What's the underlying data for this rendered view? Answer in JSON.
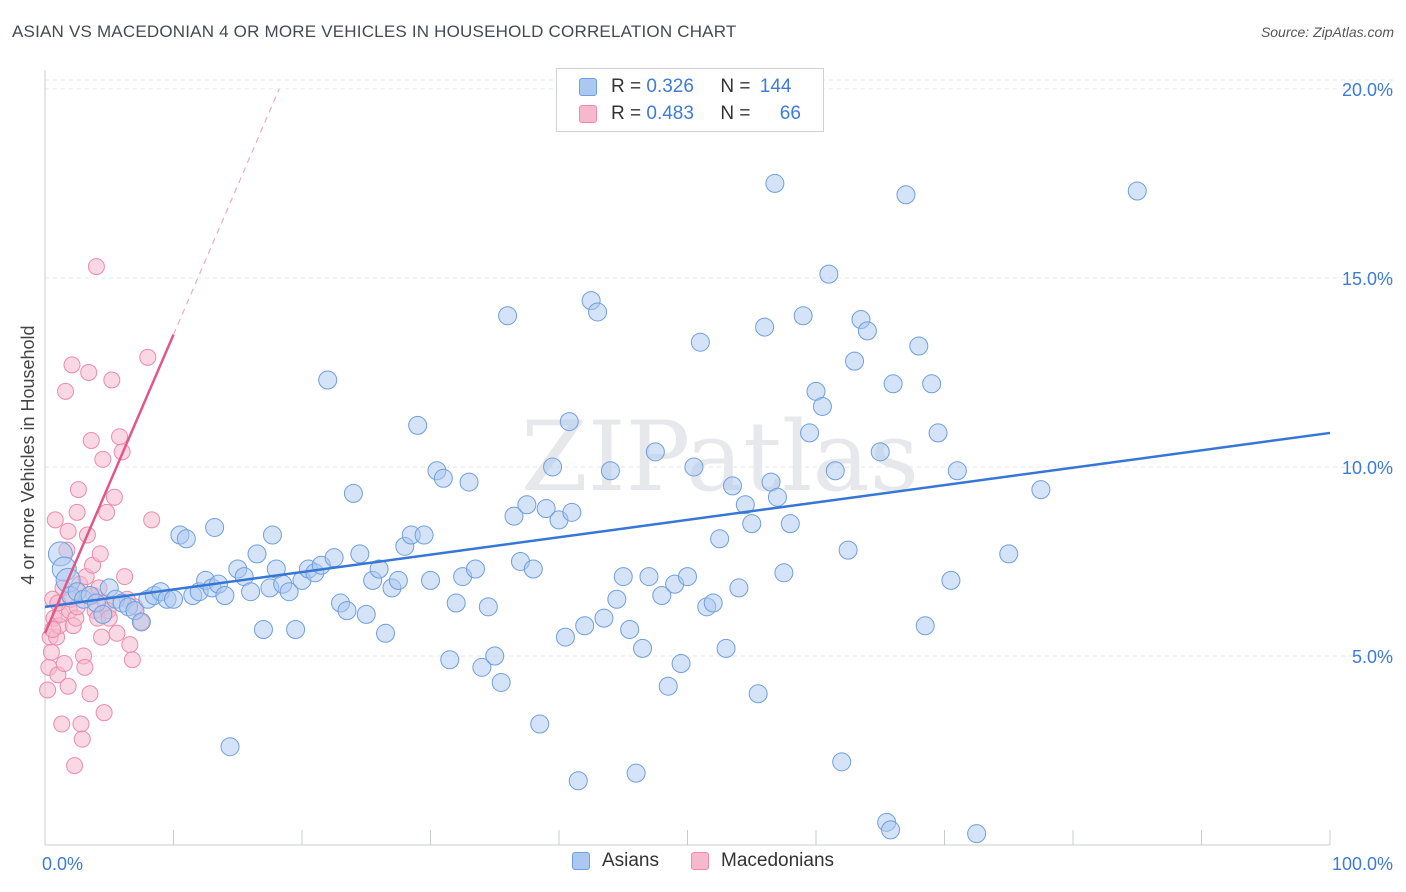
{
  "title": "ASIAN VS MACEDONIAN 4 OR MORE VEHICLES IN HOUSEHOLD CORRELATION CHART",
  "source": "Source: ZipAtlas.com",
  "watermark": "ZIPatlas",
  "colors": {
    "asian_fill": "#aac8f0",
    "asian_stroke": "#6f9fe0",
    "asian_line": "#3576d6",
    "mac_fill": "#f6b8cc",
    "mac_stroke": "#ee8aaa",
    "mac_line": "#e2578a",
    "axis_text": "#3d7bd9"
  },
  "legend": {
    "rows": [
      {
        "r_label": "R =",
        "r_value": "0.326",
        "n_label": "N =",
        "n_value": "144"
      },
      {
        "r_label": "R =",
        "r_value": "0.483",
        "n_label": "N =",
        "n_value": "66"
      }
    ]
  },
  "bottom_legend": [
    "Asians",
    "Macedonians"
  ],
  "chart_data": {
    "type": "scatter",
    "title": "ASIAN VS MACEDONIAN 4 OR MORE VEHICLES IN HOUSEHOLD CORRELATION CHART",
    "xlabel": "",
    "ylabel": "4 or more Vehicles in Household",
    "xlim": [
      0,
      100
    ],
    "ylim": [
      0,
      20.5
    ],
    "x_tick_labels": [
      "0.0%",
      "100.0%"
    ],
    "y_ticks": [
      5,
      10,
      15,
      20
    ],
    "y_tick_labels": [
      "5.0%",
      "10.0%",
      "15.0%",
      "20.0%"
    ],
    "grid": true,
    "series": [
      {
        "name": "Asians",
        "r": 0.326,
        "n": 144,
        "trend": {
          "x": [
            0,
            100
          ],
          "y": [
            6.3,
            10.9
          ]
        },
        "points": [
          [
            1.2,
            7.7
          ],
          [
            1.5,
            7.3
          ],
          [
            1.8,
            7.0
          ],
          [
            2.0,
            6.6
          ],
          [
            2.5,
            6.7
          ],
          [
            3.0,
            6.5
          ],
          [
            3.5,
            6.6
          ],
          [
            4.0,
            6.4
          ],
          [
            4.5,
            6.1
          ],
          [
            5.0,
            6.8
          ],
          [
            5.5,
            6.5
          ],
          [
            6.0,
            6.4
          ],
          [
            6.5,
            6.3
          ],
          [
            7.0,
            6.2
          ],
          [
            7.5,
            5.9
          ],
          [
            8.0,
            6.5
          ],
          [
            8.5,
            6.6
          ],
          [
            9.0,
            6.7
          ],
          [
            9.5,
            6.5
          ],
          [
            10.0,
            6.5
          ],
          [
            10.5,
            8.2
          ],
          [
            11.0,
            8.1
          ],
          [
            11.5,
            6.6
          ],
          [
            12.0,
            6.7
          ],
          [
            12.5,
            7.0
          ],
          [
            13.0,
            6.8
          ],
          [
            13.2,
            8.4
          ],
          [
            13.5,
            6.9
          ],
          [
            14.0,
            6.6
          ],
          [
            14.4,
            2.6
          ],
          [
            15.0,
            7.3
          ],
          [
            15.5,
            7.1
          ],
          [
            16.0,
            6.7
          ],
          [
            16.5,
            7.7
          ],
          [
            17.0,
            5.7
          ],
          [
            17.5,
            6.8
          ],
          [
            17.7,
            8.2
          ],
          [
            18.0,
            7.3
          ],
          [
            18.5,
            6.9
          ],
          [
            19.0,
            6.7
          ],
          [
            19.5,
            5.7
          ],
          [
            20.0,
            7.0
          ],
          [
            20.5,
            7.3
          ],
          [
            21.0,
            7.2
          ],
          [
            21.5,
            7.4
          ],
          [
            22.0,
            12.3
          ],
          [
            22.5,
            7.6
          ],
          [
            23.0,
            6.4
          ],
          [
            23.5,
            6.2
          ],
          [
            24.0,
            9.3
          ],
          [
            24.5,
            7.7
          ],
          [
            25.0,
            6.1
          ],
          [
            25.5,
            7.0
          ],
          [
            26.0,
            7.3
          ],
          [
            26.5,
            5.6
          ],
          [
            27.0,
            6.8
          ],
          [
            27.5,
            7.0
          ],
          [
            28.0,
            7.9
          ],
          [
            28.5,
            8.2
          ],
          [
            29.0,
            11.1
          ],
          [
            29.5,
            8.2
          ],
          [
            30.0,
            7.0
          ],
          [
            30.5,
            9.9
          ],
          [
            31.0,
            9.7
          ],
          [
            31.5,
            4.9
          ],
          [
            32.0,
            6.4
          ],
          [
            32.5,
            7.1
          ],
          [
            33.0,
            9.6
          ],
          [
            33.5,
            7.3
          ],
          [
            34.0,
            4.7
          ],
          [
            34.5,
            6.3
          ],
          [
            35.0,
            5.0
          ],
          [
            35.5,
            4.3
          ],
          [
            36.0,
            14.0
          ],
          [
            36.5,
            8.7
          ],
          [
            37.0,
            7.5
          ],
          [
            37.5,
            9.0
          ],
          [
            38.0,
            7.3
          ],
          [
            38.5,
            3.2
          ],
          [
            39.0,
            8.9
          ],
          [
            39.5,
            10.0
          ],
          [
            40.0,
            8.6
          ],
          [
            40.5,
            5.5
          ],
          [
            40.8,
            11.2
          ],
          [
            41.0,
            8.8
          ],
          [
            41.5,
            1.7
          ],
          [
            42.0,
            5.8
          ],
          [
            42.5,
            14.4
          ],
          [
            43.0,
            14.1
          ],
          [
            43.5,
            6.0
          ],
          [
            44.0,
            9.9
          ],
          [
            44.5,
            6.5
          ],
          [
            45.0,
            7.1
          ],
          [
            45.5,
            5.7
          ],
          [
            46.0,
            1.9
          ],
          [
            46.5,
            5.2
          ],
          [
            47.0,
            7.1
          ],
          [
            47.5,
            10.4
          ],
          [
            48.0,
            6.6
          ],
          [
            48.5,
            4.2
          ],
          [
            49.0,
            6.9
          ],
          [
            49.5,
            4.8
          ],
          [
            50.0,
            7.1
          ],
          [
            50.5,
            10.0
          ],
          [
            51.0,
            13.3
          ],
          [
            51.5,
            6.3
          ],
          [
            52.0,
            6.4
          ],
          [
            52.5,
            8.1
          ],
          [
            53.0,
            5.2
          ],
          [
            53.5,
            9.5
          ],
          [
            54.0,
            6.8
          ],
          [
            54.5,
            9.0
          ],
          [
            55.0,
            8.5
          ],
          [
            55.5,
            4.0
          ],
          [
            56.0,
            13.7
          ],
          [
            56.5,
            9.6
          ],
          [
            56.8,
            17.5
          ],
          [
            57.0,
            9.2
          ],
          [
            57.5,
            7.2
          ],
          [
            58.0,
            8.5
          ],
          [
            59.0,
            14.0
          ],
          [
            59.5,
            10.9
          ],
          [
            60.0,
            12.0
          ],
          [
            60.5,
            11.6
          ],
          [
            61.0,
            15.1
          ],
          [
            61.5,
            9.9
          ],
          [
            62.0,
            2.2
          ],
          [
            62.5,
            7.8
          ],
          [
            63.0,
            12.8
          ],
          [
            63.5,
            13.9
          ],
          [
            64.0,
            13.6
          ],
          [
            65.0,
            10.4
          ],
          [
            65.5,
            0.6
          ],
          [
            65.8,
            0.4
          ],
          [
            66.0,
            12.2
          ],
          [
            67.0,
            17.2
          ],
          [
            68.0,
            13.2
          ],
          [
            68.5,
            5.8
          ],
          [
            69.0,
            12.2
          ],
          [
            69.5,
            10.9
          ],
          [
            70.5,
            7.0
          ],
          [
            71.0,
            9.9
          ],
          [
            72.5,
            0.3
          ],
          [
            75.0,
            7.7
          ],
          [
            77.5,
            9.4
          ],
          [
            85.0,
            17.3
          ]
        ]
      },
      {
        "name": "Macedonians",
        "r": 0.483,
        "n": 66,
        "trend": {
          "x": [
            0,
            10
          ],
          "y": [
            5.6,
            13.5
          ]
        },
        "points": [
          [
            0.2,
            4.1
          ],
          [
            0.3,
            4.7
          ],
          [
            0.4,
            5.5
          ],
          [
            0.5,
            5.1
          ],
          [
            0.6,
            6.5
          ],
          [
            0.7,
            6.0
          ],
          [
            0.8,
            8.6
          ],
          [
            0.9,
            5.5
          ],
          [
            1.0,
            4.5
          ],
          [
            1.1,
            5.8
          ],
          [
            1.2,
            6.1
          ],
          [
            1.3,
            3.2
          ],
          [
            1.4,
            6.8
          ],
          [
            1.5,
            4.8
          ],
          [
            1.6,
            12.0
          ],
          [
            1.7,
            7.8
          ],
          [
            1.8,
            8.3
          ],
          [
            1.9,
            6.2
          ],
          [
            2.0,
            6.5
          ],
          [
            2.1,
            12.7
          ],
          [
            2.2,
            5.8
          ],
          [
            2.3,
            2.1
          ],
          [
            2.4,
            6.0
          ],
          [
            2.5,
            8.8
          ],
          [
            2.6,
            9.4
          ],
          [
            2.7,
            6.9
          ],
          [
            2.8,
            3.2
          ],
          [
            2.9,
            2.8
          ],
          [
            3.0,
            5.0
          ],
          [
            3.1,
            4.7
          ],
          [
            3.2,
            7.1
          ],
          [
            3.3,
            8.2
          ],
          [
            3.4,
            12.5
          ],
          [
            3.5,
            4.0
          ],
          [
            3.6,
            10.7
          ],
          [
            3.7,
            7.4
          ],
          [
            3.8,
            6.6
          ],
          [
            3.9,
            6.2
          ],
          [
            4.0,
            15.3
          ],
          [
            4.1,
            6.0
          ],
          [
            4.2,
            6.8
          ],
          [
            4.3,
            7.7
          ],
          [
            4.4,
            5.5
          ],
          [
            4.5,
            10.2
          ],
          [
            4.6,
            3.5
          ],
          [
            4.7,
            6.4
          ],
          [
            4.8,
            8.8
          ],
          [
            4.9,
            6.2
          ],
          [
            5.0,
            6.0
          ],
          [
            5.2,
            12.3
          ],
          [
            5.4,
            9.2
          ],
          [
            5.6,
            5.6
          ],
          [
            5.8,
            10.8
          ],
          [
            6.0,
            10.4
          ],
          [
            6.2,
            7.1
          ],
          [
            6.4,
            6.5
          ],
          [
            6.6,
            5.3
          ],
          [
            6.8,
            4.9
          ],
          [
            7.0,
            6.3
          ],
          [
            7.5,
            5.9
          ],
          [
            8.0,
            12.9
          ],
          [
            8.3,
            8.6
          ],
          [
            1.0,
            6.4
          ],
          [
            0.6,
            5.7
          ],
          [
            1.8,
            4.2
          ],
          [
            2.5,
            6.3
          ]
        ]
      }
    ]
  }
}
